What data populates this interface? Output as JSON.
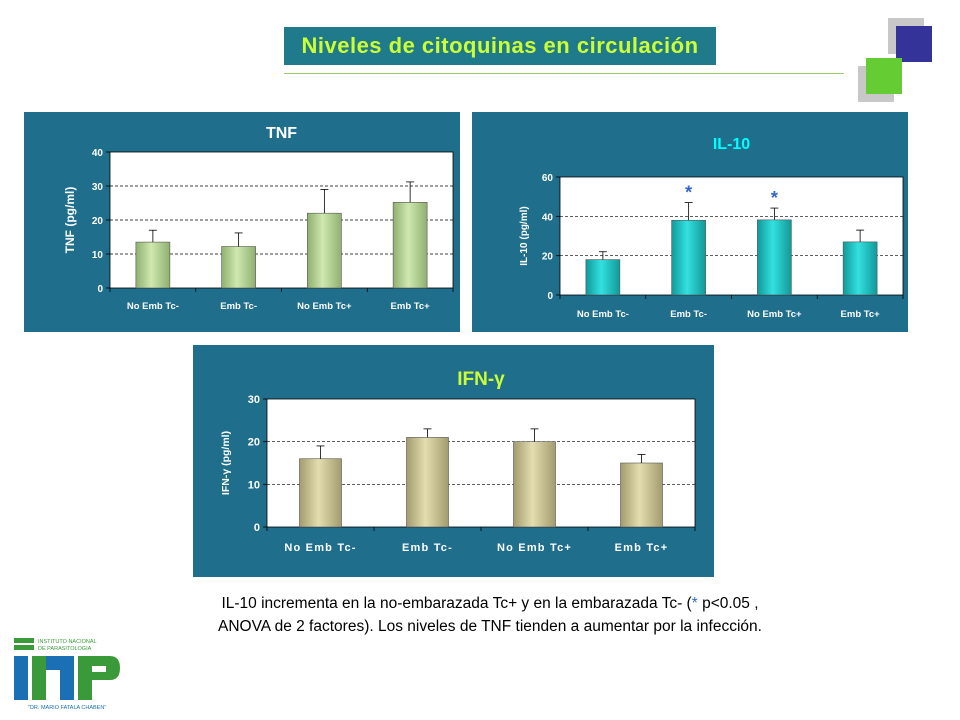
{
  "slide": {
    "title": "Niveles de citoquinas en circulación",
    "caption_line1_a": "IL-10 incrementa en la no-embarazada Tc+ y en la embarazada Tc-  (",
    "caption_star": "*",
    "caption_line1_b": " p<0.05 ,",
    "caption_line2": "ANOVA de 2 factores). Los niveles de TNF tienden a aumentar por la infección.",
    "logo": {
      "line1": "INSTITUTO NACIONAL",
      "line2": "DE PARASITOLOGIA",
      "line3": "\"DR. MARIO FATALA CHABEN\"",
      "letters": "INP"
    }
  },
  "colors": {
    "panel_bg": "#1f6e8c",
    "title_bg": "#1f7a8c",
    "title_text": "#ccff33",
    "tnf_bar": "#cfe8b0",
    "il10_bar": "#33e0e0",
    "ifn_bar": "#e3ddb0",
    "star": "#3366cc"
  },
  "chart_data": [
    {
      "type": "bar",
      "title": "TNF",
      "ylabel": "TNF (pg/ml)",
      "categories": [
        "No Emb Tc-",
        "Emb Tc-",
        "No Emb Tc+",
        "Emb Tc+"
      ],
      "values": [
        13.5,
        12.2,
        22,
        25.2
      ],
      "errors": [
        3.5,
        4,
        7,
        6
      ],
      "stars": [
        false,
        false,
        false,
        false
      ],
      "ylim": [
        0,
        40
      ],
      "yticks": [
        0,
        10,
        20,
        30,
        40
      ],
      "grid": true
    },
    {
      "type": "bar",
      "title": "IL-10",
      "ylabel": "IL-10 (pg/ml)",
      "categories": [
        "No Emb Tc-",
        "Emb Tc-",
        "No Emb Tc+",
        "Emb Tc+"
      ],
      "values": [
        18,
        38,
        38.2,
        27
      ],
      "errors": [
        4,
        9,
        6,
        6
      ],
      "stars": [
        false,
        true,
        true,
        false
      ],
      "star_label": "*",
      "ylim": [
        0,
        60
      ],
      "yticks": [
        0,
        20,
        40,
        60
      ],
      "grid": true
    },
    {
      "type": "bar",
      "title": "IFN-γ",
      "ylabel": "IFN-γ (pg/ml)",
      "categories": [
        "No Emb Tc-",
        "Emb Tc-",
        "No Emb Tc+",
        "Emb Tc+"
      ],
      "values": [
        16,
        21,
        20,
        15
      ],
      "errors": [
        3,
        2,
        3,
        2
      ],
      "stars": [
        false,
        false,
        false,
        false
      ],
      "ylim": [
        0,
        30
      ],
      "yticks": [
        0,
        10,
        20,
        30
      ],
      "grid": true
    }
  ]
}
